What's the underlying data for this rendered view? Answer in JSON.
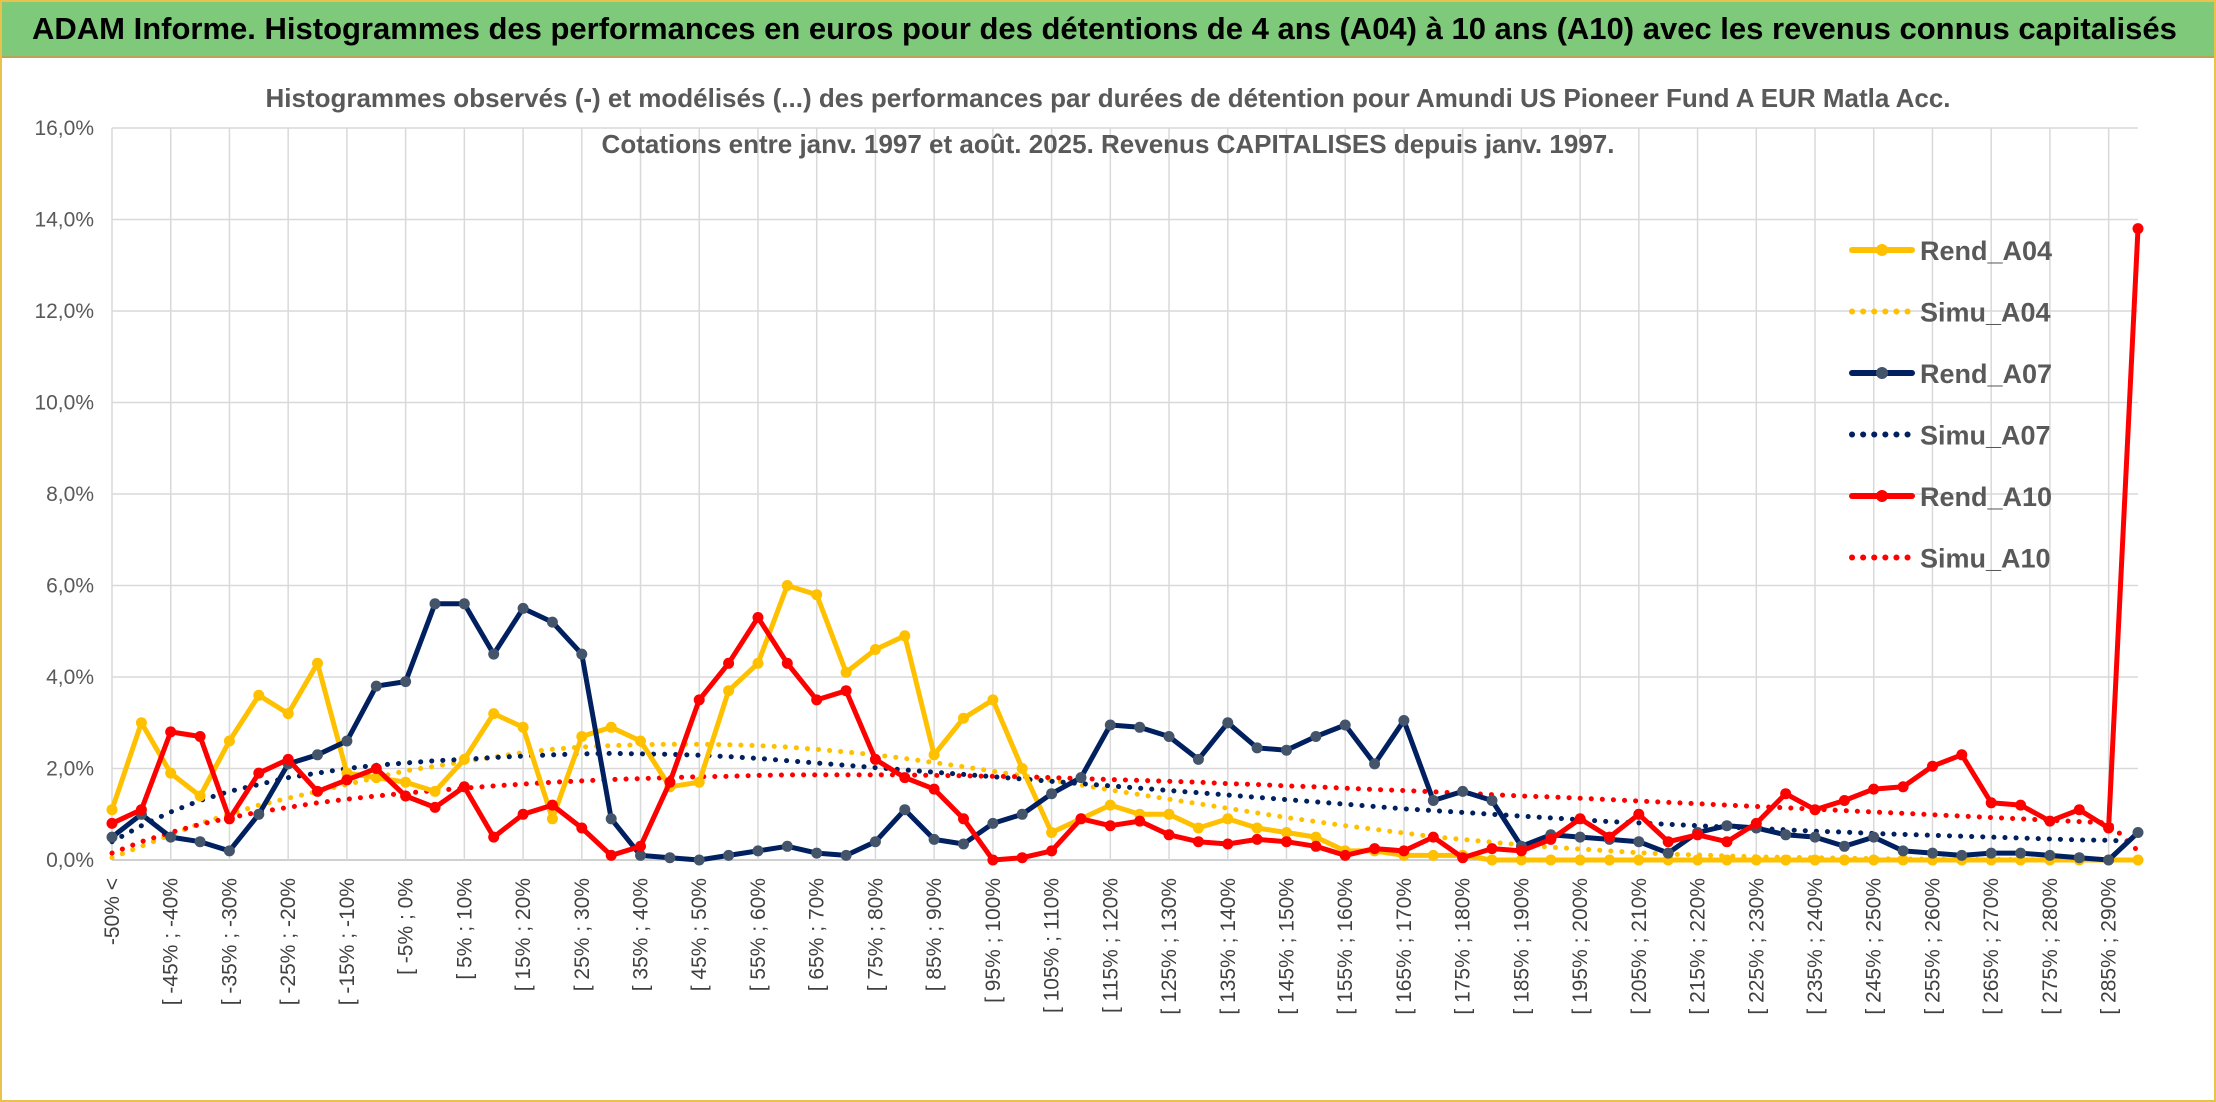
{
  "banner": {
    "title": "ADAM Informe. Histogrammes des performances en euros pour des détentions de 4 ans (A04) à 10 ans (A10) avec les revenus connus capitalisés"
  },
  "colors": {
    "banner_bg": "#7ec97a",
    "frame": "#e8c24a",
    "grid": "#d9d9d9",
    "A04": "#ffc000",
    "A07": "#002060",
    "A10": "#ff0000",
    "marker_A07": "#44546a"
  },
  "chart_data": {
    "type": "line",
    "title_lines": [
      "Histogrammes observés (-) et modélisés (...) des performances par durées de détention pour Amundi US Pioneer Fund A EUR Matla Acc.",
      "Cotations entre janv. 1997 et août. 2025. Revenus CAPITALISES depuis janv. 1997."
    ],
    "ylim": [
      0,
      16
    ],
    "yticks": [
      "0,0%",
      "2,0%",
      "4,0%",
      "6,0%",
      "8,0%",
      "10,0%",
      "12,0%",
      "14,0%",
      "16,0%"
    ],
    "grid": true,
    "legend_position": "top-right",
    "x_labels": [
      "-50% <",
      "[ -45% ; -40%",
      "[ -35% ; -30%",
      "[ -25% ; -20%",
      "[ -15% ; -10%",
      "[ -5% ; 0%",
      "[ 5% ; 10%",
      "[ 15% ; 20%",
      "[ 25% ; 30%",
      "[ 35% ; 40%",
      "[ 45% ; 50%",
      "[ 55% ; 60%",
      "[ 65% ; 70%",
      "[ 75% ; 80%",
      "[ 85% ; 90%",
      "[ 95% ; 100%",
      "[ 105% ; 110%",
      "[ 115% ; 120%",
      "[ 125% ; 130%",
      "[ 135% ; 140%",
      "[ 145% ; 150%",
      "[ 155% ; 160%",
      "[ 165% ; 170%",
      "[ 175% ; 180%",
      "[ 185% ; 190%",
      "[ 195% ; 200%",
      "[ 205% ; 210%",
      "[ 215% ; 220%",
      "[ 225% ; 230%",
      "[ 235% ; 240%",
      "[ 245% ; 250%",
      "[ 255% ; 260%",
      "[ 265% ; 270%",
      "[ 275% ; 280%",
      "[ 285% ; 290%"
    ],
    "n_points": 70,
    "series": [
      {
        "name": "Rend_A04",
        "style": "solid",
        "color": "#ffc000",
        "marker": true,
        "values": [
          1.1,
          3.0,
          1.9,
          1.4,
          2.6,
          3.6,
          3.2,
          4.3,
          1.9,
          1.8,
          1.7,
          1.5,
          2.2,
          3.2,
          2.9,
          0.9,
          2.7,
          2.9,
          2.6,
          1.6,
          1.7,
          3.7,
          4.3,
          6.0,
          5.8,
          4.1,
          4.6,
          4.9,
          2.3,
          3.1,
          3.5,
          2.0,
          0.6,
          0.9,
          1.2,
          1.0,
          1.0,
          0.7,
          0.9,
          0.7,
          0.6,
          0.5,
          0.2,
          0.2,
          0.1,
          0.1,
          0.1,
          0.0,
          0.0,
          0.0,
          0.0,
          0.0,
          0.0,
          0.0,
          0.0,
          0.0,
          0.0,
          0.0,
          0.0,
          0.0,
          0.0,
          0.0,
          0.0,
          0.0,
          0.0,
          0.0,
          0.0,
          0.0,
          0.0,
          0.0
        ]
      },
      {
        "name": "Simu_A04",
        "style": "dotted",
        "color": "#ffc000",
        "marker": false,
        "values": [
          0.05,
          0.3,
          0.55,
          0.8,
          1.0,
          1.2,
          1.35,
          1.5,
          1.65,
          1.8,
          1.95,
          2.05,
          2.15,
          2.25,
          2.35,
          2.42,
          2.47,
          2.5,
          2.52,
          2.53,
          2.53,
          2.52,
          2.5,
          2.47,
          2.42,
          2.36,
          2.3,
          2.22,
          2.13,
          2.04,
          1.94,
          1.84,
          1.74,
          1.64,
          1.53,
          1.43,
          1.33,
          1.23,
          1.13,
          1.03,
          0.93,
          0.84,
          0.75,
          0.67,
          0.59,
          0.51,
          0.45,
          0.39,
          0.33,
          0.28,
          0.24,
          0.2,
          0.16,
          0.13,
          0.11,
          0.09,
          0.07,
          0.06,
          0.05,
          0.04,
          0.03,
          0.02,
          0.02,
          0.01,
          0.01,
          0.01,
          0.0,
          0.0,
          0.0,
          0.0
        ]
      },
      {
        "name": "Rend_A07",
        "style": "solid",
        "color": "#002060",
        "marker": true,
        "values": [
          0.5,
          1.0,
          0.5,
          0.4,
          0.2,
          1.0,
          2.1,
          2.3,
          2.6,
          3.8,
          3.9,
          5.6,
          5.6,
          4.5,
          5.5,
          5.2,
          4.5,
          0.9,
          0.1,
          0.05,
          0.0,
          0.1,
          0.2,
          0.3,
          0.15,
          0.1,
          0.4,
          1.1,
          0.45,
          0.35,
          0.8,
          1.0,
          1.45,
          1.8,
          2.95,
          2.9,
          2.7,
          2.2,
          3.0,
          2.45,
          2.4,
          2.7,
          2.95,
          2.1,
          3.05,
          1.3,
          1.5,
          1.3,
          0.3,
          0.55,
          0.5,
          0.45,
          0.4,
          0.15,
          0.6,
          0.75,
          0.7,
          0.55,
          0.5,
          0.3,
          0.5,
          0.2,
          0.15,
          0.1,
          0.15,
          0.15,
          0.1,
          0.05,
          0.0,
          0.6
        ]
      },
      {
        "name": "Simu_A07",
        "style": "dotted",
        "color": "#002060",
        "marker": false,
        "values": [
          0.4,
          0.75,
          1.05,
          1.3,
          1.5,
          1.65,
          1.8,
          1.9,
          2.0,
          2.07,
          2.12,
          2.17,
          2.2,
          2.24,
          2.27,
          2.3,
          2.32,
          2.33,
          2.32,
          2.31,
          2.29,
          2.26,
          2.22,
          2.17,
          2.12,
          2.07,
          2.02,
          1.97,
          1.92,
          1.87,
          1.82,
          1.77,
          1.72,
          1.67,
          1.62,
          1.57,
          1.52,
          1.47,
          1.42,
          1.37,
          1.32,
          1.27,
          1.22,
          1.17,
          1.12,
          1.08,
          1.04,
          1.0,
          0.96,
          0.92,
          0.88,
          0.84,
          0.81,
          0.78,
          0.75,
          0.72,
          0.69,
          0.66,
          0.63,
          0.61,
          0.58,
          0.56,
          0.54,
          0.52,
          0.5,
          0.48,
          0.46,
          0.44,
          0.43,
          0.4
        ]
      },
      {
        "name": "Rend_A10",
        "style": "solid",
        "color": "#ff0000",
        "marker": true,
        "values": [
          0.8,
          1.1,
          2.8,
          2.7,
          0.9,
          1.9,
          2.2,
          1.5,
          1.75,
          2.0,
          1.4,
          1.15,
          1.6,
          0.5,
          1.0,
          1.2,
          0.7,
          0.1,
          0.3,
          1.7,
          3.5,
          4.3,
          5.3,
          4.3,
          3.5,
          3.7,
          2.2,
          1.8,
          1.55,
          0.9,
          0.0,
          0.05,
          0.2,
          0.9,
          0.75,
          0.85,
          0.55,
          0.4,
          0.35,
          0.45,
          0.4,
          0.3,
          0.1,
          0.25,
          0.2,
          0.5,
          0.05,
          0.25,
          0.2,
          0.45,
          0.9,
          0.5,
          1.0,
          0.4,
          0.55,
          0.4,
          0.8,
          1.45,
          1.1,
          1.3,
          1.55,
          1.6,
          2.05,
          2.3,
          1.25,
          1.2,
          0.85,
          1.1,
          0.7,
          13.8
        ]
      },
      {
        "name": "Simu_A10",
        "style": "dotted",
        "color": "#ff0000",
        "marker": false,
        "values": [
          0.15,
          0.4,
          0.6,
          0.78,
          0.92,
          1.05,
          1.15,
          1.25,
          1.33,
          1.4,
          1.46,
          1.52,
          1.57,
          1.62,
          1.66,
          1.7,
          1.73,
          1.76,
          1.78,
          1.8,
          1.82,
          1.83,
          1.85,
          1.86,
          1.86,
          1.86,
          1.86,
          1.86,
          1.85,
          1.84,
          1.83,
          1.82,
          1.8,
          1.78,
          1.76,
          1.74,
          1.72,
          1.7,
          1.67,
          1.65,
          1.62,
          1.6,
          1.57,
          1.54,
          1.52,
          1.49,
          1.46,
          1.43,
          1.4,
          1.38,
          1.35,
          1.32,
          1.29,
          1.26,
          1.23,
          1.2,
          1.17,
          1.14,
          1.11,
          1.08,
          1.05,
          1.02,
          0.99,
          0.96,
          0.93,
          0.9,
          0.87,
          0.84,
          0.81,
          0.2
        ]
      }
    ]
  }
}
